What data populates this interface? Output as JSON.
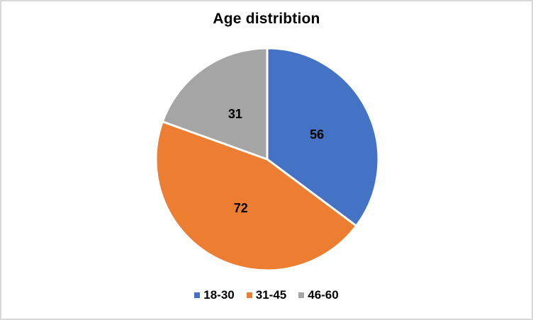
{
  "chart_data": {
    "type": "pie",
    "title": "Age distribtion",
    "categories": [
      "18-30",
      "31-45",
      "46-60"
    ],
    "values": [
      56,
      72,
      31
    ],
    "colors": [
      "#4472C4",
      "#ED7D31",
      "#A5A5A5"
    ],
    "data_labels_shown": true,
    "slice_label_color": "#000000",
    "slice_separator_color": "#FFFFFF",
    "start_angle_deg": 0,
    "direction": "clockwise",
    "legend_position": "bottom",
    "background_color": "#FFFFFF",
    "frame_border_color": "#D9D9D9"
  }
}
